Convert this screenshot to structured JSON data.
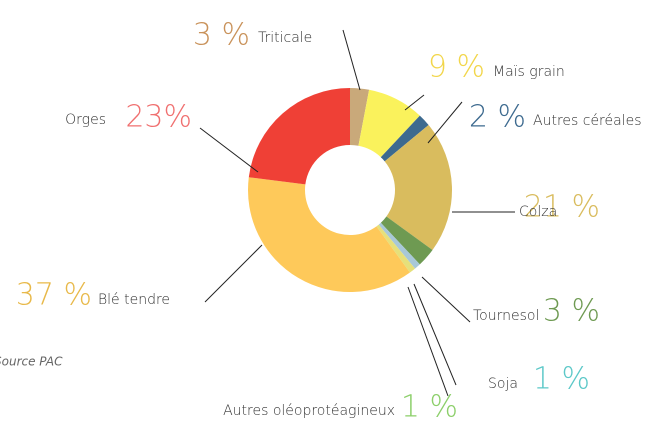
{
  "chart_data": {
    "type": "donut",
    "categories": [
      "Triticale",
      "Maïs grain",
      "Autres céréales",
      "Colza",
      "Tournesol",
      "Soja",
      "Autres oléoprotéagineux",
      "Blé tendre",
      "Orges"
    ],
    "values": [
      3,
      9,
      2,
      21,
      3,
      1,
      1,
      37,
      23
    ],
    "value_labels": [
      "3 %",
      "9 %",
      "2 %",
      "21 %",
      "3 %",
      "1 %",
      "1 %",
      "37 %",
      "23%"
    ],
    "colors": [
      "#c9a97a",
      "#faf25c",
      "#3d6a8f",
      "#d9bc5e",
      "#6e9a52",
      "#a8c8d8",
      "#e6e07a",
      "#fec95a",
      "#ef4036"
    ],
    "label_colors": [
      "#c9925a",
      "#f2d64a",
      "#3d6a8f",
      "#d9bc5e",
      "#6e9a52",
      "#5cc8c8",
      "#8ccf6a",
      "#e8b94a",
      "#f07070"
    ],
    "note": "Source PAC"
  }
}
